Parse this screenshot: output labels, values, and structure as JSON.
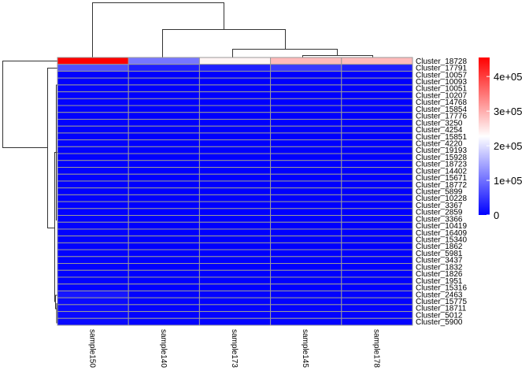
{
  "chart_data": {
    "type": "heatmap",
    "title": "",
    "columns": [
      "sample150",
      "sample140",
      "sample173",
      "sample145",
      "sample178"
    ],
    "rows": [
      "Cluster_18728",
      "Cluster_17791",
      "Cluster_10057",
      "Cluster_10093",
      "Cluster_10051",
      "Cluster_10207",
      "Cluster_14768",
      "Cluster_15854",
      "Cluster_17776",
      "Cluster_3250",
      "Cluster_4254",
      "Cluster_15851",
      "Cluster_4220",
      "Cluster_19193",
      "Cluster_15928",
      "Cluster_18723",
      "Cluster_14402",
      "Cluster_15671",
      "Cluster_18772",
      "Cluster_5899",
      "Cluster_10228",
      "Cluster_3367",
      "Cluster_2859",
      "Cluster_3366",
      "Cluster_10419",
      "Cluster_16409",
      "Cluster_15340",
      "Cluster_1862",
      "Cluster_5981",
      "Cluster_3437",
      "Cluster_1832",
      "Cluster_1826",
      "Cluster_1951",
      "Cluster_15316",
      "Cluster_2463",
      "Cluster_15775",
      "Cluster_18711",
      "Cluster_5012",
      "Cluster_5900"
    ],
    "values": [
      [
        455000,
        106000,
        237000,
        289000,
        289000
      ],
      [
        71000,
        28000,
        28000,
        52000,
        28000
      ],
      [
        2000,
        0,
        0,
        0,
        0
      ],
      [
        2000,
        0,
        0,
        0,
        0
      ],
      [
        2000,
        0,
        0,
        0,
        0
      ],
      [
        2000,
        0,
        0,
        0,
        0
      ],
      [
        2000,
        0,
        0,
        0,
        0
      ],
      [
        2000,
        0,
        0,
        0,
        0
      ],
      [
        2000,
        0,
        0,
        0,
        0
      ],
      [
        2000,
        0,
        0,
        0,
        0
      ],
      [
        2000,
        0,
        0,
        0,
        0
      ],
      [
        2000,
        0,
        0,
        0,
        0
      ],
      [
        2000,
        0,
        0,
        0,
        0
      ],
      [
        2000,
        0,
        0,
        0,
        0
      ],
      [
        2000,
        0,
        0,
        0,
        0
      ],
      [
        2000,
        0,
        0,
        0,
        0
      ],
      [
        2000,
        0,
        0,
        0,
        0
      ],
      [
        2000,
        0,
        0,
        0,
        0
      ],
      [
        2000,
        0,
        0,
        0,
        0
      ],
      [
        2000,
        0,
        0,
        0,
        0
      ],
      [
        2000,
        0,
        0,
        0,
        0
      ],
      [
        2000,
        0,
        0,
        0,
        0
      ],
      [
        2000,
        0,
        0,
        0,
        0
      ],
      [
        2000,
        0,
        0,
        0,
        0
      ],
      [
        2000,
        0,
        0,
        0,
        0
      ],
      [
        2000,
        0,
        0,
        0,
        0
      ],
      [
        2000,
        0,
        0,
        0,
        0
      ],
      [
        2000,
        0,
        0,
        0,
        0
      ],
      [
        2000,
        0,
        0,
        0,
        0
      ],
      [
        2000,
        0,
        0,
        0,
        0
      ],
      [
        2000,
        0,
        0,
        0,
        0
      ],
      [
        2000,
        0,
        0,
        0,
        0
      ],
      [
        2000,
        0,
        0,
        0,
        0
      ],
      [
        2000,
        0,
        0,
        0,
        0
      ],
      [
        20000,
        3000,
        3000,
        3000,
        3000
      ],
      [
        10000,
        3000,
        3000,
        3000,
        3000
      ],
      [
        10000,
        3000,
        3000,
        3000,
        3000
      ],
      [
        8000,
        3000,
        3000,
        3000,
        3000
      ],
      [
        8000,
        3000,
        3000,
        3000,
        3000
      ]
    ],
    "color_scale": {
      "low": "#0000ff",
      "mid": "#ffffff",
      "high": "#ff0000",
      "min": 0,
      "max": 455000
    },
    "legend": {
      "ticks": [
        0,
        100000,
        200000,
        300000,
        400000
      ],
      "tick_labels": [
        "0",
        "1e+05",
        "2e+05",
        "3e+05",
        "4e+05"
      ],
      "placement": "right"
    },
    "row_dendrogram": true,
    "column_dendrogram": true
  }
}
